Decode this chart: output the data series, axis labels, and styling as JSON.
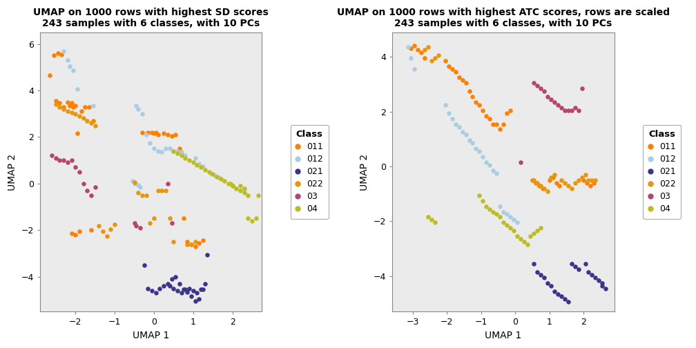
{
  "plot1": {
    "title": "UMAP on 1000 rows with highest SD scores\n243 samples with 6 classes, with 10 PCs",
    "xlabel": "UMAP 1",
    "ylabel": "UMAP 2",
    "xlim": [
      -2.9,
      2.75
    ],
    "ylim": [
      -5.5,
      6.5
    ],
    "xticks": [
      -2,
      -1,
      0,
      1,
      2
    ],
    "yticks": [
      -4,
      -2,
      0,
      2,
      4,
      6
    ],
    "classes": {
      "011": {
        "color": "#FF7F00",
        "x": [
          -2.65,
          -2.55,
          -2.45,
          -2.35,
          -2.5,
          -2.4,
          -2.3,
          -2.2,
          -2.1,
          -2.0,
          -1.95,
          -1.85,
          -2.15,
          -2.05,
          -1.75,
          -1.65,
          -1.55,
          -2.0,
          -2.1,
          -1.9,
          -1.6,
          -0.05,
          0.05,
          0.1,
          0.25,
          0.35,
          0.45,
          0.55,
          0.65,
          0.75,
          0.85,
          0.95,
          1.05,
          1.15,
          1.25,
          -0.3,
          -0.15,
          0.0
        ],
        "y": [
          4.65,
          5.5,
          5.6,
          5.55,
          3.55,
          3.45,
          3.3,
          3.5,
          3.45,
          3.35,
          2.15,
          3.1,
          3.35,
          3.3,
          3.3,
          3.3,
          2.7,
          -2.2,
          -2.15,
          -2.05,
          -2.0,
          2.2,
          2.2,
          2.1,
          2.15,
          2.1,
          2.05,
          2.1,
          1.5,
          -1.5,
          -2.5,
          -2.6,
          -2.7,
          -2.55,
          -2.45,
          2.2,
          2.2,
          2.15
        ]
      },
      "012": {
        "color": "#A8CEE3",
        "x": [
          -2.3,
          -2.2,
          -2.15,
          -2.05,
          -1.95,
          -1.55,
          -0.45,
          -0.4,
          -0.3,
          -0.2,
          -0.1,
          0.0,
          0.1,
          0.2,
          0.3,
          0.4,
          0.5,
          0.6,
          0.7,
          0.8,
          1.05,
          1.15,
          1.25,
          1.45,
          1.55,
          1.65,
          -0.55,
          -0.5,
          -0.4,
          -0.35
        ],
        "y": [
          5.7,
          5.3,
          5.05,
          4.85,
          4.05,
          3.35,
          3.35,
          3.2,
          3.0,
          2.1,
          1.75,
          1.5,
          1.4,
          1.35,
          1.5,
          1.5,
          1.4,
          1.4,
          1.35,
          1.2,
          1.1,
          0.85,
          0.75,
          0.45,
          0.35,
          0.25,
          0.1,
          0.0,
          -0.05,
          -0.15
        ]
      },
      "021": {
        "color": "#3B3589",
        "x": [
          -0.25,
          -0.15,
          -0.05,
          0.05,
          0.15,
          0.25,
          0.35,
          0.45,
          0.55,
          0.65,
          0.75,
          0.85,
          0.95,
          1.05,
          1.15,
          1.25,
          1.35,
          0.4,
          0.5,
          0.6,
          0.7,
          0.8,
          0.9,
          1.0,
          1.1,
          1.2,
          1.3
        ],
        "y": [
          -3.5,
          -4.5,
          -4.6,
          -4.7,
          -4.5,
          -4.4,
          -4.3,
          -4.1,
          -4.0,
          -4.3,
          -4.55,
          -4.65,
          -4.85,
          -5.05,
          -4.95,
          -4.55,
          -3.05,
          -4.4,
          -4.5,
          -4.6,
          -4.7,
          -4.55,
          -4.5,
          -4.6,
          -4.7,
          -4.55,
          -4.3
        ]
      },
      "022": {
        "color": "#E8960C",
        "x": [
          -2.5,
          -2.4,
          -2.3,
          -2.2,
          -2.1,
          -2.0,
          -1.9,
          -1.8,
          -1.7,
          -1.6,
          -1.5,
          -1.4,
          -1.3,
          -1.2,
          -1.1,
          -1.0,
          -0.5,
          -0.4,
          -0.3,
          -0.2,
          -0.1,
          0.0,
          0.1,
          0.2,
          0.3,
          0.4,
          0.5,
          0.85,
          0.95,
          1.05
        ],
        "y": [
          3.4,
          3.3,
          3.2,
          3.1,
          3.05,
          3.0,
          2.9,
          2.8,
          2.7,
          2.6,
          2.5,
          -1.8,
          -2.05,
          -2.25,
          -1.95,
          -1.75,
          0.05,
          -0.4,
          -0.5,
          -0.5,
          -1.7,
          -1.5,
          -0.3,
          -0.3,
          -0.3,
          -1.5,
          -2.5,
          -2.6,
          -2.6,
          -2.5
        ]
      },
      "03": {
        "color": "#B5446E",
        "x": [
          -2.6,
          -2.5,
          -2.4,
          -2.3,
          -2.2,
          -2.1,
          -2.0,
          -1.9,
          -1.8,
          -1.7,
          -1.6,
          -1.5,
          -0.5,
          -0.45,
          -0.35,
          0.35,
          0.45
        ],
        "y": [
          1.2,
          1.1,
          1.0,
          1.0,
          0.9,
          1.0,
          0.7,
          0.5,
          0.0,
          -0.3,
          -0.5,
          -0.15,
          -1.7,
          -1.8,
          -1.9,
          0.0,
          -1.7
        ]
      },
      "04": {
        "color": "#BCBD22",
        "x": [
          0.5,
          0.6,
          0.7,
          0.8,
          0.9,
          1.0,
          1.1,
          1.2,
          1.3,
          1.4,
          1.5,
          1.6,
          1.7,
          1.8,
          1.9,
          2.0,
          2.1,
          2.2,
          2.3,
          2.4,
          2.5,
          2.6,
          2.65,
          2.4,
          2.3,
          2.2,
          2.1,
          2.0,
          1.95
        ],
        "y": [
          1.4,
          1.3,
          1.2,
          1.1,
          1.0,
          0.9,
          0.8,
          0.7,
          0.6,
          0.5,
          0.4,
          0.3,
          0.2,
          0.1,
          0.0,
          -0.1,
          -0.2,
          -0.1,
          -0.2,
          -1.5,
          -1.6,
          -1.5,
          -0.5,
          -0.5,
          -0.4,
          -0.3,
          -0.2,
          -0.1,
          0.0
        ]
      }
    }
  },
  "plot2": {
    "title": "UMAP on 1000 rows with highest ATC scores, rows are scaled\n243 samples with 6 classes, with 10 PCs",
    "xlabel": "UMAP 1",
    "ylabel": "UMAP 2",
    "xlim": [
      -3.6,
      2.9
    ],
    "ylim": [
      -5.3,
      4.9
    ],
    "xticks": [
      -3,
      -2,
      -1,
      0,
      1,
      2
    ],
    "yticks": [
      -4,
      -2,
      0,
      2,
      4
    ],
    "classes": {
      "011": {
        "color": "#FF7F00",
        "x": [
          -3.05,
          -2.95,
          -2.85,
          -2.75,
          -2.65,
          -2.05,
          -1.95,
          -1.85,
          -1.75,
          -1.65,
          -1.55,
          -1.45,
          -1.35,
          -1.25,
          -1.15,
          -1.05,
          -0.95,
          -0.85,
          -0.75,
          -0.65,
          -0.55,
          -0.45,
          -0.35,
          -0.25,
          -0.15,
          0.5,
          0.6,
          0.7,
          0.8,
          1.0,
          1.1,
          1.2,
          1.3,
          2.0,
          2.1,
          2.2,
          2.3
        ],
        "y": [
          4.3,
          4.4,
          4.25,
          4.15,
          3.95,
          3.85,
          3.65,
          3.55,
          3.45,
          3.25,
          3.15,
          3.05,
          2.75,
          2.55,
          2.35,
          2.25,
          2.05,
          1.85,
          1.75,
          1.55,
          1.55,
          1.35,
          1.55,
          1.95,
          2.05,
          -0.5,
          -0.6,
          -0.7,
          -0.8,
          -0.5,
          -0.4,
          -0.6,
          -0.7,
          -0.5,
          -0.6,
          -0.7,
          -0.6
        ]
      },
      "012": {
        "color": "#A8CEE3",
        "x": [
          -3.15,
          -3.05,
          -2.95,
          -2.05,
          -1.95,
          -1.85,
          -1.75,
          -1.65,
          -1.55,
          -1.45,
          -1.35,
          -1.25,
          -1.15,
          -1.05,
          -0.95,
          -0.85,
          -0.75,
          -0.65,
          -0.55,
          -0.45,
          -0.35,
          -0.25,
          -0.15,
          -0.05,
          0.05
        ],
        "y": [
          4.35,
          3.95,
          3.55,
          2.25,
          1.95,
          1.75,
          1.55,
          1.45,
          1.25,
          1.15,
          0.95,
          0.85,
          0.65,
          0.55,
          0.35,
          0.15,
          0.05,
          -0.15,
          -0.25,
          -1.45,
          -1.65,
          -1.75,
          -1.85,
          -1.95,
          -2.05
        ]
      },
      "021": {
        "color": "#3B3589",
        "x": [
          0.55,
          0.65,
          0.75,
          0.85,
          0.95,
          1.05,
          1.15,
          1.25,
          1.35,
          1.45,
          1.55,
          1.65,
          1.75,
          1.85,
          2.05,
          2.15,
          2.25,
          2.35,
          2.45,
          2.55,
          2.55,
          2.65
        ],
        "y": [
          -3.55,
          -3.85,
          -3.95,
          -4.05,
          -4.25,
          -4.35,
          -4.55,
          -4.65,
          -4.75,
          -4.85,
          -4.95,
          -3.55,
          -3.65,
          -3.75,
          -3.55,
          -3.85,
          -3.95,
          -4.05,
          -4.15,
          -4.25,
          -4.35,
          -4.45
        ]
      },
      "022": {
        "color": "#E8960C",
        "x": [
          -2.65,
          -2.55,
          -2.45,
          -2.35,
          -2.25,
          1.35,
          1.45,
          1.55,
          1.65,
          1.75,
          1.85,
          1.95,
          2.05,
          2.15,
          2.25,
          2.35,
          0.55,
          0.65,
          0.75,
          0.85,
          0.95,
          1.05,
          1.15
        ],
        "y": [
          4.25,
          4.35,
          3.85,
          3.95,
          4.05,
          -0.5,
          -0.6,
          -0.7,
          -0.8,
          -0.6,
          -0.5,
          -0.4,
          -0.3,
          -0.5,
          -0.5,
          -0.5,
          -0.5,
          -0.6,
          -0.7,
          -0.8,
          -0.9,
          -0.4,
          -0.3
        ]
      },
      "03": {
        "color": "#B5446E",
        "x": [
          0.55,
          0.65,
          0.75,
          0.85,
          0.95,
          1.05,
          1.15,
          1.25,
          1.35,
          1.45,
          1.55,
          1.65,
          1.75,
          1.85,
          1.95,
          0.15
        ],
        "y": [
          3.05,
          2.95,
          2.85,
          2.75,
          2.55,
          2.45,
          2.35,
          2.25,
          2.15,
          2.05,
          2.05,
          2.05,
          2.15,
          2.05,
          2.85,
          0.15
        ]
      },
      "04": {
        "color": "#BCBD22",
        "x": [
          -1.05,
          -0.95,
          -0.85,
          -0.75,
          -0.65,
          -0.55,
          -0.45,
          -0.35,
          -0.25,
          -0.15,
          -0.05,
          0.05,
          0.15,
          0.25,
          0.35,
          0.45,
          0.55,
          0.65,
          0.75,
          -2.55,
          -2.45,
          -2.35
        ],
        "y": [
          -1.05,
          -1.25,
          -1.45,
          -1.55,
          -1.65,
          -1.75,
          -1.85,
          -2.05,
          -2.15,
          -2.25,
          -2.35,
          -2.55,
          -2.65,
          -2.75,
          -2.85,
          -2.55,
          -2.45,
          -2.35,
          -2.25,
          -1.85,
          -1.95,
          -2.05
        ]
      }
    }
  },
  "class_colors": {
    "011": "#FF7F00",
    "012": "#A8CEE3",
    "021": "#3B3589",
    "022": "#E8960C",
    "03": "#B5446E",
    "04": "#BCBD22"
  },
  "class_order": [
    "011",
    "012",
    "021",
    "022",
    "03",
    "04"
  ],
  "bg_color": "#EBEBEB",
  "point_size": 22,
  "point_alpha": 1.0
}
